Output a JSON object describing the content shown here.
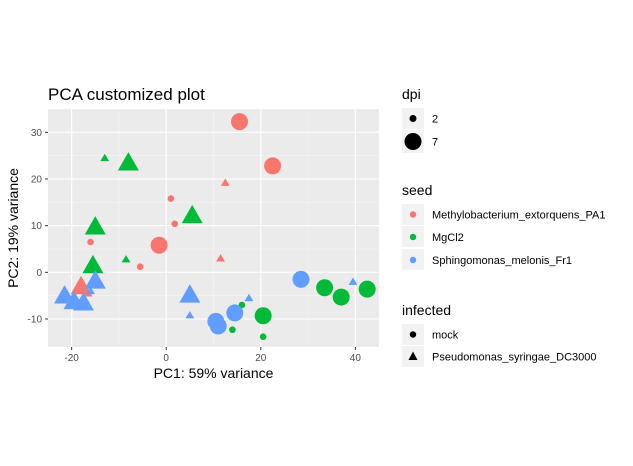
{
  "chart_data": {
    "type": "scatter",
    "title": "PCA customized plot",
    "xlabel": "PC1: 59% variance",
    "ylabel": "PC2: 19% variance",
    "xlim": [
      -25,
      45
    ],
    "ylim": [
      -16,
      35
    ],
    "xticks": [
      -20,
      0,
      20,
      40
    ],
    "yticks": [
      -10,
      0,
      10,
      20,
      30
    ],
    "grid": true,
    "legend_position": "right",
    "legends": {
      "dpi": {
        "title": "dpi",
        "entries": [
          "2",
          "7"
        ]
      },
      "seed": {
        "title": "seed",
        "entries": [
          "Methylobacterium_extorquens_PA1",
          "MgCl2",
          "Sphingomonas_melonis_Fr1"
        ]
      },
      "infected": {
        "title": "infected",
        "entries": [
          "mock",
          "Pseudomonas_syringae_DC3000"
        ]
      }
    },
    "colors": {
      "Methylobacterium_extorquens_PA1": "#F8766D",
      "MgCl2": "#00BA38",
      "Sphingomonas_melonis_Fr1": "#619CFF"
    },
    "points": [
      {
        "x": 15.5,
        "y": 32.3,
        "seed": "Methylobacterium_extorquens_PA1",
        "dpi": "7",
        "infected": "mock"
      },
      {
        "x": 22.5,
        "y": 22.8,
        "seed": "Methylobacterium_extorquens_PA1",
        "dpi": "7",
        "infected": "mock"
      },
      {
        "x": -1.5,
        "y": 5.8,
        "seed": "Methylobacterium_extorquens_PA1",
        "dpi": "7",
        "infected": "mock"
      },
      {
        "x": 1.0,
        "y": 15.8,
        "seed": "Methylobacterium_extorquens_PA1",
        "dpi": "2",
        "infected": "mock"
      },
      {
        "x": 1.8,
        "y": 10.4,
        "seed": "Methylobacterium_extorquens_PA1",
        "dpi": "2",
        "infected": "mock"
      },
      {
        "x": -5.5,
        "y": 1.2,
        "seed": "Methylobacterium_extorquens_PA1",
        "dpi": "2",
        "infected": "mock"
      },
      {
        "x": -16.0,
        "y": 6.5,
        "seed": "Methylobacterium_extorquens_PA1",
        "dpi": "2",
        "infected": "mock"
      },
      {
        "x": 12.5,
        "y": 19.2,
        "seed": "Methylobacterium_extorquens_PA1",
        "dpi": "2",
        "infected": "Pseudomonas_syringae_DC3000"
      },
      {
        "x": 11.5,
        "y": 3.0,
        "seed": "Methylobacterium_extorquens_PA1",
        "dpi": "2",
        "infected": "Pseudomonas_syringae_DC3000"
      },
      {
        "x": -18.0,
        "y": -3.0,
        "seed": "Methylobacterium_extorquens_PA1",
        "dpi": "7",
        "infected": "Pseudomonas_syringae_DC3000"
      },
      {
        "x": -16.5,
        "y": -4.5,
        "seed": "Methylobacterium_extorquens_PA1",
        "dpi": "2",
        "infected": "Pseudomonas_syringae_DC3000"
      },
      {
        "x": -21.5,
        "y": -6.0,
        "seed": "Methylobacterium_extorquens_PA1",
        "dpi": "2",
        "infected": "mock"
      },
      {
        "x": -8.0,
        "y": 23.5,
        "seed": "MgCl2",
        "dpi": "7",
        "infected": "Pseudomonas_syringae_DC3000"
      },
      {
        "x": -13.0,
        "y": 24.5,
        "seed": "MgCl2",
        "dpi": "2",
        "infected": "Pseudomonas_syringae_DC3000"
      },
      {
        "x": 5.5,
        "y": 12.2,
        "seed": "MgCl2",
        "dpi": "7",
        "infected": "Pseudomonas_syringae_DC3000"
      },
      {
        "x": -15.0,
        "y": 9.8,
        "seed": "MgCl2",
        "dpi": "7",
        "infected": "Pseudomonas_syringae_DC3000"
      },
      {
        "x": -15.5,
        "y": 1.5,
        "seed": "MgCl2",
        "dpi": "7",
        "infected": "Pseudomonas_syringae_DC3000"
      },
      {
        "x": -8.5,
        "y": 2.8,
        "seed": "MgCl2",
        "dpi": "2",
        "infected": "Pseudomonas_syringae_DC3000"
      },
      {
        "x": 33.5,
        "y": -3.3,
        "seed": "MgCl2",
        "dpi": "7",
        "infected": "mock"
      },
      {
        "x": 37.0,
        "y": -5.3,
        "seed": "MgCl2",
        "dpi": "7",
        "infected": "mock"
      },
      {
        "x": 42.5,
        "y": -3.6,
        "seed": "MgCl2",
        "dpi": "7",
        "infected": "mock"
      },
      {
        "x": 20.5,
        "y": -9.3,
        "seed": "MgCl2",
        "dpi": "7",
        "infected": "mock"
      },
      {
        "x": 16.0,
        "y": -7.0,
        "seed": "MgCl2",
        "dpi": "2",
        "infected": "mock"
      },
      {
        "x": 14.0,
        "y": -12.3,
        "seed": "MgCl2",
        "dpi": "2",
        "infected": "mock"
      },
      {
        "x": 20.5,
        "y": -13.8,
        "seed": "MgCl2",
        "dpi": "2",
        "infected": "mock"
      },
      {
        "x": 28.5,
        "y": -1.5,
        "seed": "Sphingomonas_melonis_Fr1",
        "dpi": "7",
        "infected": "mock"
      },
      {
        "x": 14.5,
        "y": -8.7,
        "seed": "Sphingomonas_melonis_Fr1",
        "dpi": "7",
        "infected": "mock"
      },
      {
        "x": 10.5,
        "y": -10.5,
        "seed": "Sphingomonas_melonis_Fr1",
        "dpi": "7",
        "infected": "mock"
      },
      {
        "x": 11.0,
        "y": -11.5,
        "seed": "Sphingomonas_melonis_Fr1",
        "dpi": "7",
        "infected": "mock"
      },
      {
        "x": 5.0,
        "y": -4.8,
        "seed": "Sphingomonas_melonis_Fr1",
        "dpi": "7",
        "infected": "Pseudomonas_syringae_DC3000"
      },
      {
        "x": 5.0,
        "y": -9.2,
        "seed": "Sphingomonas_melonis_Fr1",
        "dpi": "2",
        "infected": "Pseudomonas_syringae_DC3000"
      },
      {
        "x": 17.5,
        "y": -5.5,
        "seed": "Sphingomonas_melonis_Fr1",
        "dpi": "2",
        "infected": "Pseudomonas_syringae_DC3000"
      },
      {
        "x": 39.5,
        "y": -2.0,
        "seed": "Sphingomonas_melonis_Fr1",
        "dpi": "2",
        "infected": "Pseudomonas_syringae_DC3000"
      },
      {
        "x": -15.0,
        "y": -1.8,
        "seed": "Sphingomonas_melonis_Fr1",
        "dpi": "7",
        "infected": "Pseudomonas_syringae_DC3000"
      },
      {
        "x": -21.5,
        "y": -5.0,
        "seed": "Sphingomonas_melonis_Fr1",
        "dpi": "7",
        "infected": "Pseudomonas_syringae_DC3000"
      },
      {
        "x": -19.5,
        "y": -6.2,
        "seed": "Sphingomonas_melonis_Fr1",
        "dpi": "7",
        "infected": "Pseudomonas_syringae_DC3000"
      },
      {
        "x": -17.5,
        "y": -6.5,
        "seed": "Sphingomonas_melonis_Fr1",
        "dpi": "7",
        "infected": "Pseudomonas_syringae_DC3000"
      },
      {
        "x": -16.0,
        "y": -4.0,
        "seed": "Sphingomonas_melonis_Fr1",
        "dpi": "2",
        "infected": "Pseudomonas_syringae_DC3000"
      },
      {
        "x": -22.5,
        "y": -6.0,
        "seed": "Sphingomonas_melonis_Fr1",
        "dpi": "2",
        "infected": "mock"
      }
    ]
  }
}
